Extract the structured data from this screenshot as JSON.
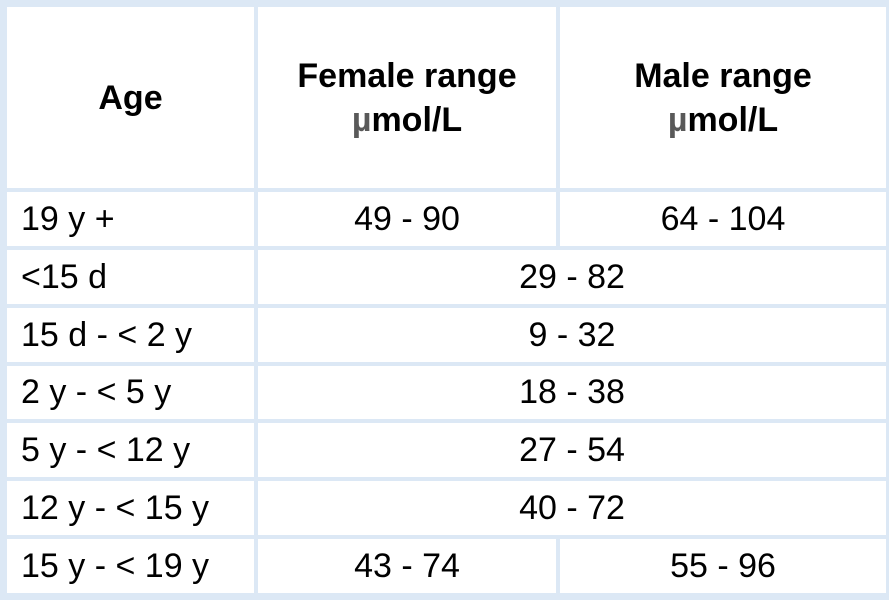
{
  "table": {
    "headers": {
      "age": "Age",
      "female_line1": "Female range",
      "female_unit_mu": "µ",
      "female_unit_rest": "mol/L",
      "male_line1": "Male range",
      "male_unit_mu": "µ",
      "male_unit_rest": "mol/L"
    },
    "rows": [
      {
        "age": "19 y +",
        "female": "49 - 90",
        "male": "64 - 104"
      },
      {
        "age": "<15 d",
        "combined": "29 - 82"
      },
      {
        "age": "15 d - < 2 y",
        "combined": "9 - 32"
      },
      {
        "age": "2 y - < 5 y",
        "combined": "18 - 38"
      },
      {
        "age": "5 y - < 12 y",
        "combined": "27 - 54"
      },
      {
        "age": "12 y - < 15 y",
        "combined": "40 - 72"
      },
      {
        "age": "15 y - < 19 y",
        "female": "43 - 74",
        "male": "55 - 96"
      }
    ]
  },
  "colors": {
    "border": "#dce8f5",
    "cell_background": "#ffffff",
    "text": "#000000",
    "unit_symbol": "#595959"
  }
}
